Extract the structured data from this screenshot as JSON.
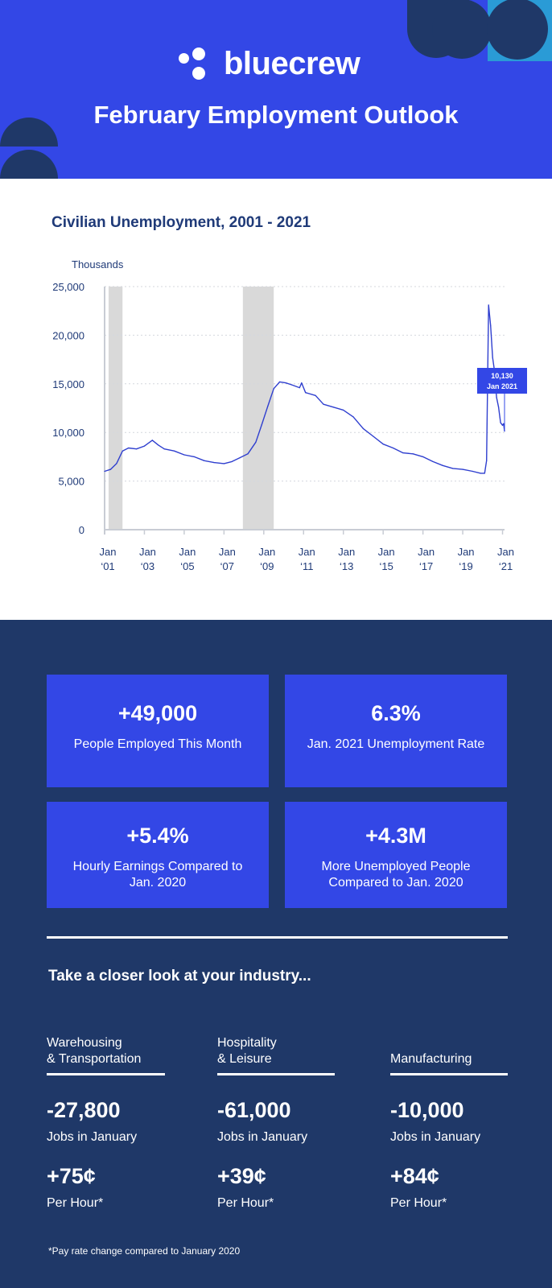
{
  "header": {
    "brand": "bluecrew",
    "title": "February Employment Outlook",
    "colors": {
      "primary": "#3347e6",
      "navy": "#1f3868",
      "teal": "#2a9bd6"
    }
  },
  "chart_data": {
    "type": "line",
    "title": "Civilian Unemployment, 2001 - 2021",
    "ylabel": "Thousands",
    "xlabel": "",
    "ylim": [
      0,
      25000
    ],
    "xlim": [
      2001.0,
      2021.1
    ],
    "y_ticks": [
      "0",
      "5,000",
      "10,000",
      "15,000",
      "20,000",
      "25,000"
    ],
    "y_tick_values": [
      0,
      5000,
      10000,
      15000,
      20000,
      25000
    ],
    "x_ticks": [
      {
        "top": "Jan",
        "bottom": "‘01",
        "value": 2001
      },
      {
        "top": "Jan",
        "bottom": "‘03",
        "value": 2003
      },
      {
        "top": "Jan",
        "bottom": "‘05",
        "value": 2005
      },
      {
        "top": "Jan",
        "bottom": "‘07",
        "value": 2007
      },
      {
        "top": "Jan",
        "bottom": "‘09",
        "value": 2009
      },
      {
        "top": "Jan",
        "bottom": "‘11",
        "value": 2011
      },
      {
        "top": "Jan",
        "bottom": "‘13",
        "value": 2013
      },
      {
        "top": "Jan",
        "bottom": "‘15",
        "value": 2015
      },
      {
        "top": "Jan",
        "bottom": "‘17",
        "value": 2017
      },
      {
        "top": "Jan",
        "bottom": "‘19",
        "value": 2019
      },
      {
        "top": "Jan",
        "bottom": "‘21",
        "value": 2021
      }
    ],
    "recessions": [
      {
        "start": 2001.2,
        "end": 2001.9
      },
      {
        "start": 2007.95,
        "end": 2009.5
      }
    ],
    "series": [
      {
        "values": [
          {
            "x": 2001.0,
            "y": 6000
          },
          {
            "x": 2001.3,
            "y": 6200
          },
          {
            "x": 2001.6,
            "y": 6800
          },
          {
            "x": 2001.9,
            "y": 8100
          },
          {
            "x": 2002.2,
            "y": 8400
          },
          {
            "x": 2002.6,
            "y": 8300
          },
          {
            "x": 2003.0,
            "y": 8600
          },
          {
            "x": 2003.4,
            "y": 9200
          },
          {
            "x": 2003.7,
            "y": 8700
          },
          {
            "x": 2004.0,
            "y": 8300
          },
          {
            "x": 2004.5,
            "y": 8100
          },
          {
            "x": 2005.0,
            "y": 7700
          },
          {
            "x": 2005.5,
            "y": 7500
          },
          {
            "x": 2006.0,
            "y": 7100
          },
          {
            "x": 2006.5,
            "y": 6900
          },
          {
            "x": 2007.0,
            "y": 6800
          },
          {
            "x": 2007.4,
            "y": 7000
          },
          {
            "x": 2007.8,
            "y": 7400
          },
          {
            "x": 2008.2,
            "y": 7800
          },
          {
            "x": 2008.6,
            "y": 9000
          },
          {
            "x": 2008.9,
            "y": 10800
          },
          {
            "x": 2009.2,
            "y": 12700
          },
          {
            "x": 2009.5,
            "y": 14500
          },
          {
            "x": 2009.8,
            "y": 15200
          },
          {
            "x": 2010.1,
            "y": 15100
          },
          {
            "x": 2010.4,
            "y": 14900
          },
          {
            "x": 2010.8,
            "y": 14600
          },
          {
            "x": 2010.9,
            "y": 15100
          },
          {
            "x": 2011.1,
            "y": 14100
          },
          {
            "x": 2011.6,
            "y": 13800
          },
          {
            "x": 2012.0,
            "y": 12900
          },
          {
            "x": 2012.5,
            "y": 12600
          },
          {
            "x": 2013.0,
            "y": 12300
          },
          {
            "x": 2013.5,
            "y": 11600
          },
          {
            "x": 2014.0,
            "y": 10400
          },
          {
            "x": 2014.5,
            "y": 9600
          },
          {
            "x": 2015.0,
            "y": 8800
          },
          {
            "x": 2015.5,
            "y": 8400
          },
          {
            "x": 2016.0,
            "y": 7900
          },
          {
            "x": 2016.5,
            "y": 7800
          },
          {
            "x": 2017.0,
            "y": 7500
          },
          {
            "x": 2017.5,
            "y": 7000
          },
          {
            "x": 2018.0,
            "y": 6600
          },
          {
            "x": 2018.5,
            "y": 6300
          },
          {
            "x": 2019.0,
            "y": 6200
          },
          {
            "x": 2019.5,
            "y": 6000
          },
          {
            "x": 2019.9,
            "y": 5800
          },
          {
            "x": 2020.1,
            "y": 5800
          },
          {
            "x": 2020.2,
            "y": 7100
          },
          {
            "x": 2020.3,
            "y": 23100
          },
          {
            "x": 2020.4,
            "y": 21000
          },
          {
            "x": 2020.5,
            "y": 17700
          },
          {
            "x": 2020.6,
            "y": 16300
          },
          {
            "x": 2020.7,
            "y": 13600
          },
          {
            "x": 2020.8,
            "y": 12600
          },
          {
            "x": 2020.9,
            "y": 11000
          },
          {
            "x": 2021.0,
            "y": 10736
          },
          {
            "x": 2021.05,
            "y": 10900
          },
          {
            "x": 2021.1,
            "y": 10130
          }
        ]
      }
    ],
    "annotation": {
      "value": "10,130",
      "label": "Jan 2021",
      "x": 2021.1,
      "y": 10130
    },
    "grid": true,
    "line_color": "#2f3fcf"
  },
  "stats": [
    {
      "value": "+49,000",
      "desc": "People Employed This Month"
    },
    {
      "value": "6.3%",
      "desc": "Jan. 2021 Unemployment Rate"
    },
    {
      "value": "+5.4%",
      "desc": "Hourly Earnings Compared to Jan. 2020"
    },
    {
      "value": "+4.3M",
      "desc": "More Unemployed People Compared to Jan. 2020"
    }
  ],
  "closer_title": "Take a closer look at your industry...",
  "industries": [
    {
      "name_line1": "Warehousing",
      "name_line2": "& Transportation",
      "jobs": "-27,800",
      "jobs_label": "Jobs in January",
      "pay": "+75¢",
      "pay_label": "Per Hour*"
    },
    {
      "name_line1": "Hospitality",
      "name_line2": "& Leisure",
      "jobs": "-61,000",
      "jobs_label": "Jobs in January",
      "pay": "+39¢",
      "pay_label": "Per Hour*"
    },
    {
      "name_line1": "",
      "name_line2": "Manufacturing",
      "jobs": "-10,000",
      "jobs_label": "Jobs in January",
      "pay": "+84¢",
      "pay_label": "Per Hour*"
    }
  ],
  "footnote": "*Pay rate change compared to January 2020"
}
